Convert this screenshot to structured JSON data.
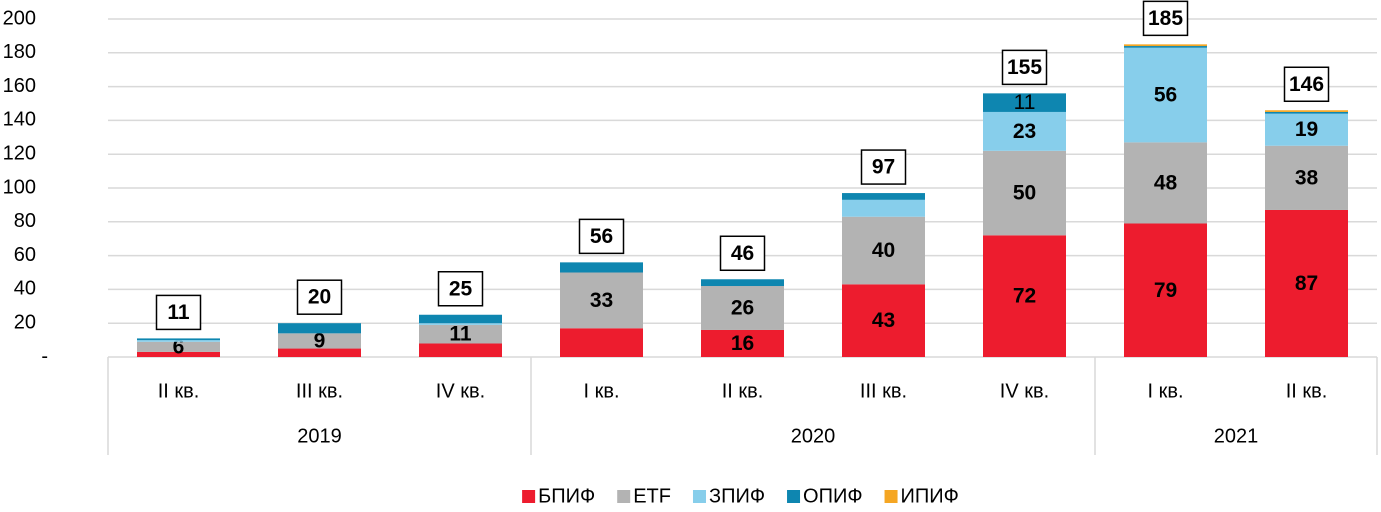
{
  "chart_data": {
    "type": "stacked-bar",
    "categories": [
      "II кв.",
      "III кв.",
      "IV кв.",
      "I кв.",
      "II кв.",
      "III кв.",
      "IV кв.",
      "I кв.",
      "II кв."
    ],
    "groups": [
      {
        "label": "2019",
        "span": 3
      },
      {
        "label": "2020",
        "span": 4
      },
      {
        "label": "2021",
        "span": 2
      }
    ],
    "series": [
      {
        "name": "БПИФ",
        "color": "#ed1c2e",
        "values": [
          3,
          5,
          8,
          17,
          16,
          43,
          72,
          79,
          87
        ],
        "value_labels": [
          null,
          null,
          null,
          null,
          "16",
          "43",
          "72",
          "79",
          "87"
        ]
      },
      {
        "name": "ETF",
        "color": "#b3b3b3",
        "values": [
          6,
          9,
          11,
          33,
          26,
          40,
          50,
          48,
          38
        ],
        "value_labels": [
          "6",
          "9",
          "11",
          "33",
          "26",
          "40",
          "50",
          "48",
          "38"
        ]
      },
      {
        "name": "ЗПИФ",
        "color": "#87ceeb",
        "values": [
          1,
          0,
          1,
          0,
          0,
          10,
          23,
          56,
          19
        ],
        "value_labels": [
          null,
          null,
          null,
          null,
          null,
          null,
          "23",
          "56",
          "19"
        ]
      },
      {
        "name": "ОПИФ",
        "color": "#0e86b0",
        "values": [
          1,
          6,
          5,
          6,
          4,
          4,
          11,
          1,
          1
        ],
        "value_labels": [
          null,
          null,
          null,
          null,
          null,
          null,
          "11",
          null,
          null
        ]
      },
      {
        "name": "ИПИФ",
        "color": "#f5a623",
        "values": [
          0,
          0,
          0,
          0,
          0,
          0,
          0,
          1,
          1
        ],
        "value_labels": [
          null,
          null,
          null,
          null,
          null,
          null,
          null,
          null,
          null
        ]
      }
    ],
    "totals": [
      11,
      20,
      25,
      56,
      46,
      97,
      155,
      185,
      146
    ],
    "ylim": [
      0,
      200
    ],
    "yticks": [
      {
        "value": 0,
        "label": "-"
      },
      20,
      40,
      60,
      80,
      100,
      120,
      140,
      160,
      180,
      200
    ],
    "grid": true
  }
}
